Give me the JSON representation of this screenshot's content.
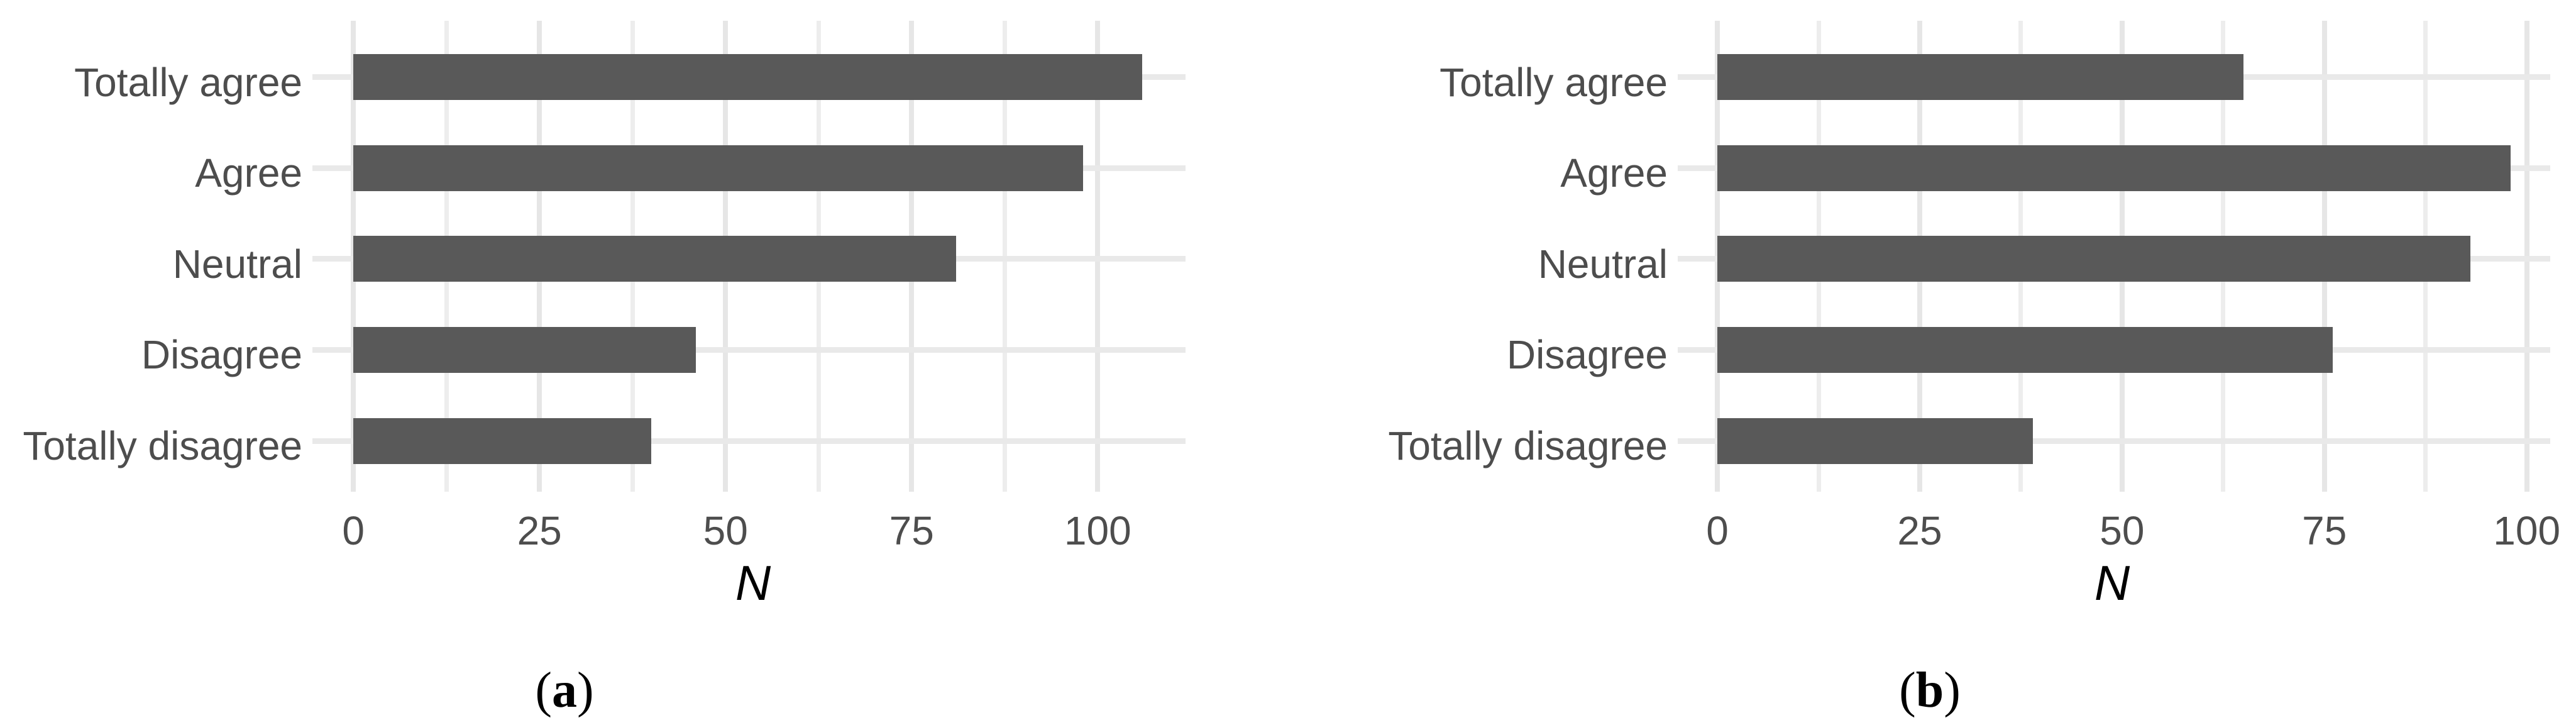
{
  "figure": {
    "background": "#ffffff",
    "bar_color": "#595959",
    "grid_major_color": "#e6e6e6",
    "grid_minor_color": "#ededed",
    "axis_text_color": "#4d4d4d"
  },
  "chart_data": [
    {
      "type": "bar",
      "orientation": "horizontal",
      "caption_open": "(",
      "caption_letter": "a",
      "caption_close": ")",
      "categories": [
        "Totally agree",
        "Agree",
        "Neutral",
        "Disagree",
        "Totally disagree"
      ],
      "values": [
        106,
        98,
        81,
        46,
        40
      ],
      "xlabel": "N",
      "xticks": [
        0,
        25,
        50,
        75,
        100
      ],
      "xticks_minor": [
        12.5,
        37.5,
        62.5,
        87.5
      ],
      "xlim": [
        -5.5,
        111.8
      ],
      "grid": "on",
      "legend": "none"
    },
    {
      "type": "bar",
      "orientation": "horizontal",
      "caption_open": "(",
      "caption_letter": "b",
      "caption_close": ")",
      "categories": [
        "Totally agree",
        "Agree",
        "Neutral",
        "Disagree",
        "Totally disagree"
      ],
      "values": [
        65,
        98,
        93,
        76,
        39
      ],
      "xlabel": "N",
      "xticks": [
        0,
        25,
        50,
        75,
        100
      ],
      "xticks_minor": [
        12.5,
        37.5,
        62.5,
        87.5
      ],
      "xlim": [
        -4.9,
        102.9
      ],
      "grid": "on",
      "legend": "none"
    }
  ]
}
